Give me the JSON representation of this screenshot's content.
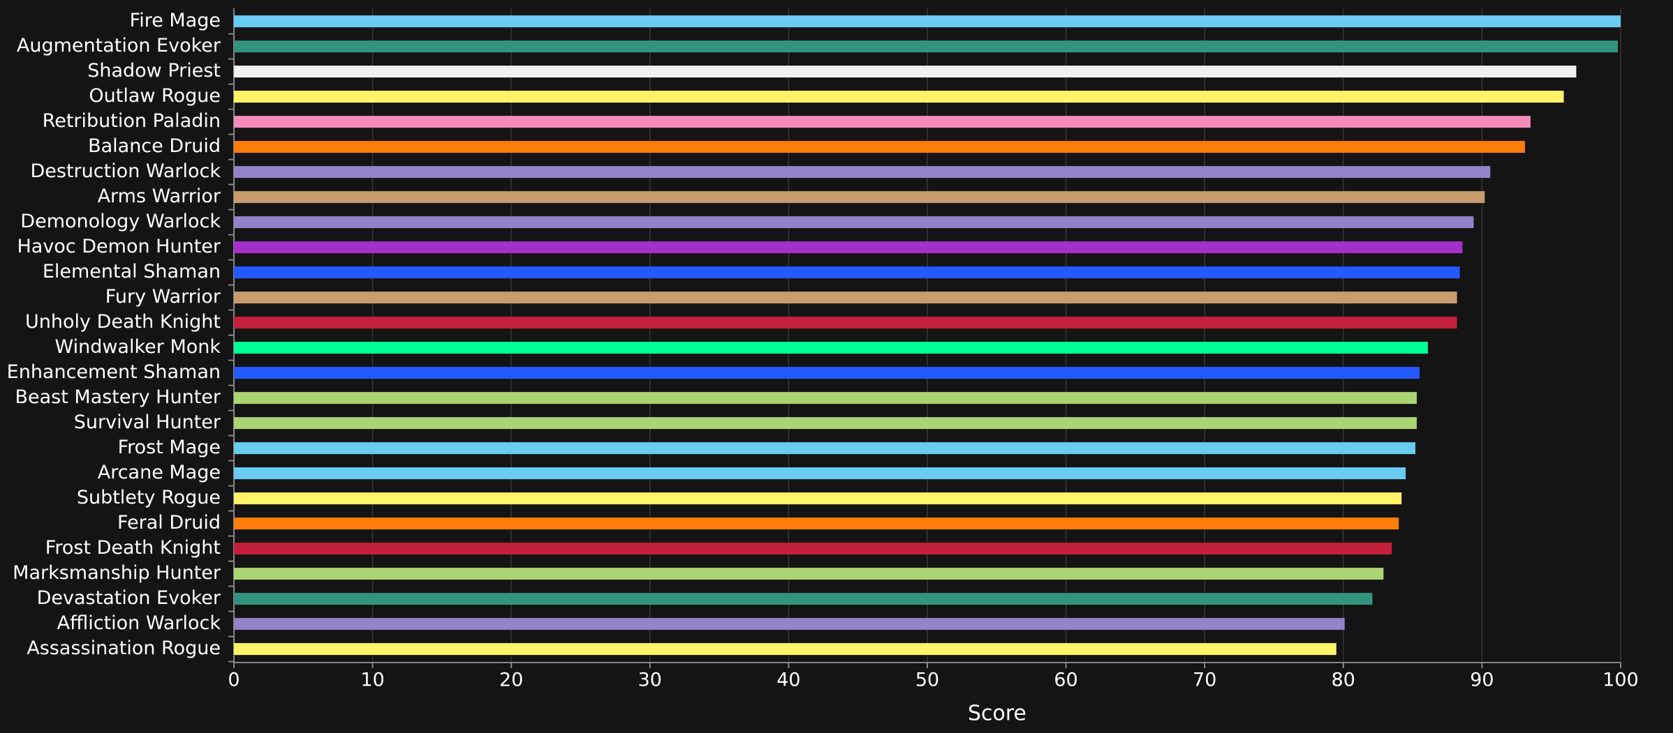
{
  "chart_data": {
    "type": "hbar",
    "categories": [
      "Fire Mage",
      "Augmentation Evoker",
      "Shadow Priest",
      "Outlaw Rogue",
      "Retribution Paladin",
      "Balance Druid",
      "Destruction Warlock",
      "Arms Warrior",
      "Demonology Warlock",
      "Havoc Demon Hunter",
      "Elemental Shaman",
      "Fury Warrior",
      "Unholy Death Knight",
      "Windwalker Monk",
      "Enhancement Shaman",
      "Beast Mastery Hunter",
      "Survival Hunter",
      "Frost Mage",
      "Arcane Mage",
      "Subtlety Rogue",
      "Feral Druid",
      "Frost Death Knight",
      "Marksmanship Hunter",
      "Devastation Evoker",
      "Affliction Warlock",
      "Assassination Rogue"
    ],
    "values": [
      100,
      99.8,
      96.8,
      95.9,
      93.5,
      93.1,
      90.6,
      90.2,
      89.4,
      88.6,
      88.4,
      88.2,
      88.2,
      86.1,
      85.5,
      85.3,
      85.3,
      85.2,
      84.5,
      84.2,
      84.0,
      83.5,
      82.9,
      82.1,
      80.1,
      79.5
    ],
    "colors": [
      "#69ccf0",
      "#33937f",
      "#f0f0f0",
      "#fff468",
      "#f58cba",
      "#ff7d0a",
      "#9482c9",
      "#c79c6e",
      "#9482c9",
      "#a330c9",
      "#2459ff",
      "#c79c6e",
      "#c41f3b",
      "#00ff96",
      "#2459ff",
      "#abd473",
      "#abd473",
      "#69ccf0",
      "#69ccf0",
      "#fff468",
      "#ff7d0a",
      "#c41f3b",
      "#abd473",
      "#33937f",
      "#9482c9",
      "#fff468"
    ],
    "x_label": "Score",
    "xlim": [
      0,
      100
    ],
    "xticks": [
      0,
      10,
      20,
      30,
      40,
      50,
      60,
      70,
      80,
      90,
      100
    ],
    "grid": true
  }
}
